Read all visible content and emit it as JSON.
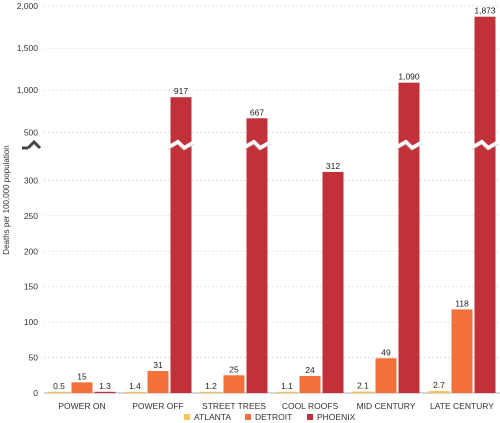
{
  "chart_data": {
    "type": "bar",
    "title": "",
    "ylabel": "Deaths per 100,000 population",
    "xlabel": "",
    "categories": [
      "POWER ON",
      "POWER OFF",
      "STREET TREES",
      "COOL ROOFS",
      "MID CENTURY",
      "LATE CENTURY"
    ],
    "series": [
      {
        "name": "ATLANTA",
        "color": "#f2c45a",
        "values": [
          0.5,
          1.4,
          1.2,
          1.1,
          2.1,
          2.7
        ],
        "labels": [
          "0.5",
          "1.4",
          "1.2",
          "1.1",
          "2.1",
          "2.7"
        ]
      },
      {
        "name": "DETROIT",
        "color": "#f2703a",
        "values": [
          15,
          31,
          25,
          24,
          49,
          118
        ],
        "labels": [
          "15",
          "31",
          "25",
          "24",
          "49",
          "118"
        ]
      },
      {
        "name": "PHOENIX",
        "color": "#c0313a",
        "values": [
          1.3,
          917,
          667,
          312,
          1090,
          1873
        ],
        "labels": [
          "1.3",
          "917",
          "667",
          "312",
          "1,090",
          "1,873"
        ]
      }
    ],
    "axis_break": true,
    "lower_segment": {
      "ylim": [
        0,
        350
      ],
      "ticks": [
        "0",
        "50",
        "100",
        "150",
        "200",
        "250",
        "300"
      ]
    },
    "upper_segment": {
      "ylim": [
        350,
        2000
      ],
      "ticks": [
        "500",
        "1,000",
        "1,500",
        "2,000"
      ]
    },
    "grid": true,
    "legend_position": "bottom"
  }
}
